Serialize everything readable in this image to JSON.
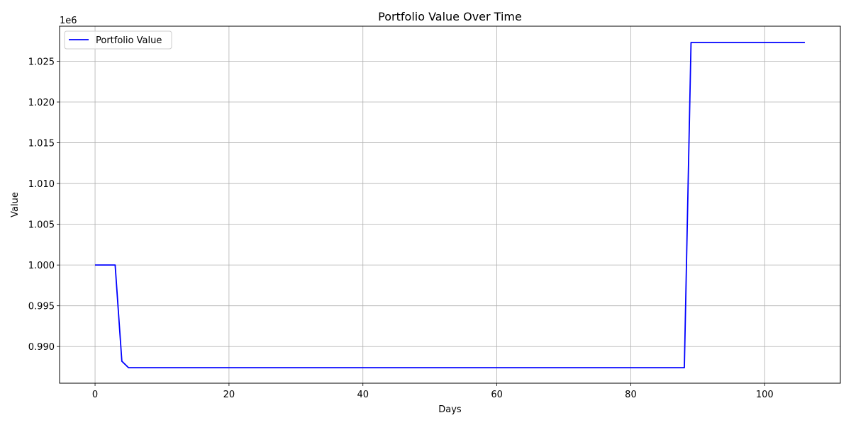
{
  "chart_data": {
    "type": "line",
    "title": "Portfolio Value Over Time",
    "xlabel": "Days",
    "ylabel": "Value",
    "y_offset_label": "1e6",
    "xlim": [
      -5.3,
      111.3
    ],
    "ylim": [
      985500,
      1029300
    ],
    "xticks": [
      0,
      20,
      40,
      60,
      80,
      100
    ],
    "yticks": [
      0.99,
      0.995,
      1.0,
      1.005,
      1.01,
      1.015,
      1.02,
      1.025
    ],
    "ytick_labels": [
      "0.990",
      "0.995",
      "1.000",
      "1.005",
      "1.010",
      "1.015",
      "1.020",
      "1.025"
    ],
    "grid": true,
    "legend_position": "upper-left",
    "series": [
      {
        "name": "Portfolio Value",
        "color": "#0000ff",
        "x": [
          0,
          3,
          4,
          5,
          88,
          89,
          106
        ],
        "y": [
          1000000,
          1000000,
          988200,
          987400,
          987400,
          1027300,
          1027300
        ]
      }
    ]
  }
}
